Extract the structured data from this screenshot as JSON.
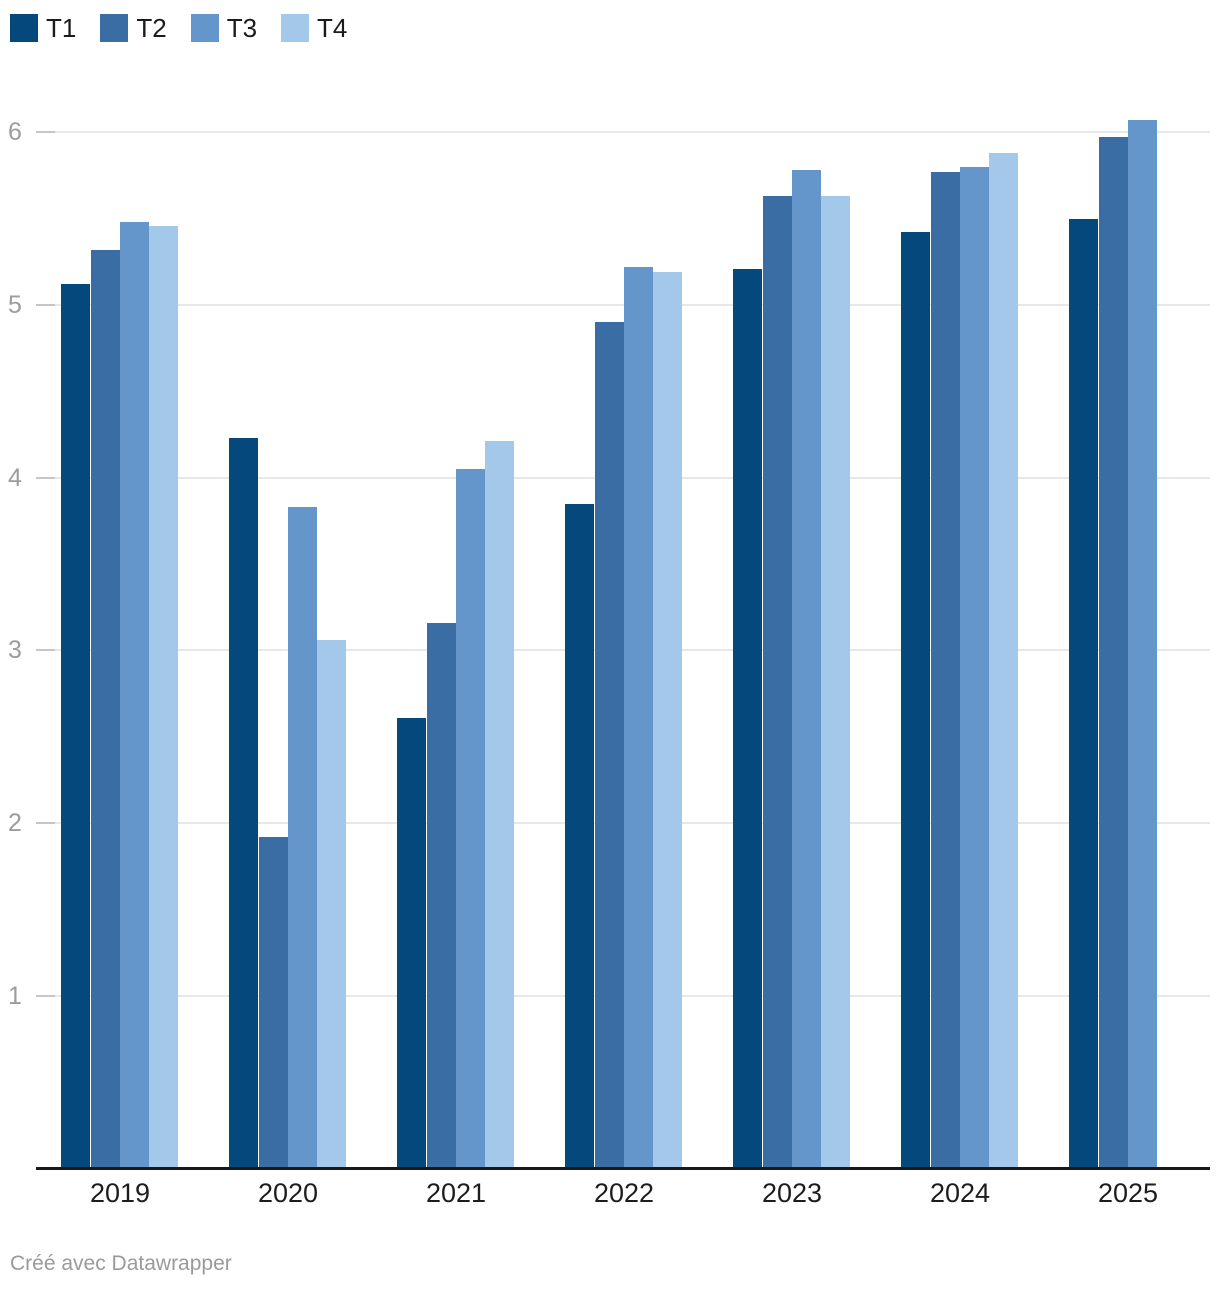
{
  "legend": {
    "items": [
      {
        "label": "T1",
        "color": "#05497c"
      },
      {
        "label": "T2",
        "color": "#3a6da3"
      },
      {
        "label": "T3",
        "color": "#6596cb"
      },
      {
        "label": "T4",
        "color": "#a4c8ea"
      }
    ]
  },
  "chart_data": {
    "type": "bar",
    "categories": [
      "2019",
      "2020",
      "2021",
      "2022",
      "2023",
      "2024",
      "2025"
    ],
    "series": [
      {
        "name": "T1",
        "color": "#05497c",
        "values": [
          5.11,
          4.22,
          2.6,
          3.84,
          5.2,
          5.41,
          5.49
        ]
      },
      {
        "name": "T2",
        "color": "#3a6da3",
        "values": [
          5.31,
          1.91,
          3.15,
          4.89,
          5.62,
          5.76,
          5.96
        ]
      },
      {
        "name": "T3",
        "color": "#6596cb",
        "values": [
          5.47,
          3.82,
          4.04,
          5.21,
          5.77,
          5.79,
          6.06
        ]
      },
      {
        "name": "T4",
        "color": "#a4c8ea",
        "values": [
          5.45,
          3.05,
          4.2,
          5.18,
          5.62,
          5.87,
          null
        ]
      }
    ],
    "yticks": [
      1,
      2,
      3,
      4,
      5,
      6
    ],
    "ylim": [
      0,
      6.25
    ],
    "grid": true,
    "legend_position": "top-left",
    "title": "",
    "xlabel": "",
    "ylabel": ""
  },
  "footer": {
    "credit": "Créé avec Datawrapper"
  },
  "colors": {
    "axis": "#191919",
    "gridline": "#e8e8e8",
    "tick": "#c6c6c6",
    "y_label": "#9c9c9c",
    "x_label": "#1d1d1d",
    "footer_text": "#9a9a9a"
  }
}
